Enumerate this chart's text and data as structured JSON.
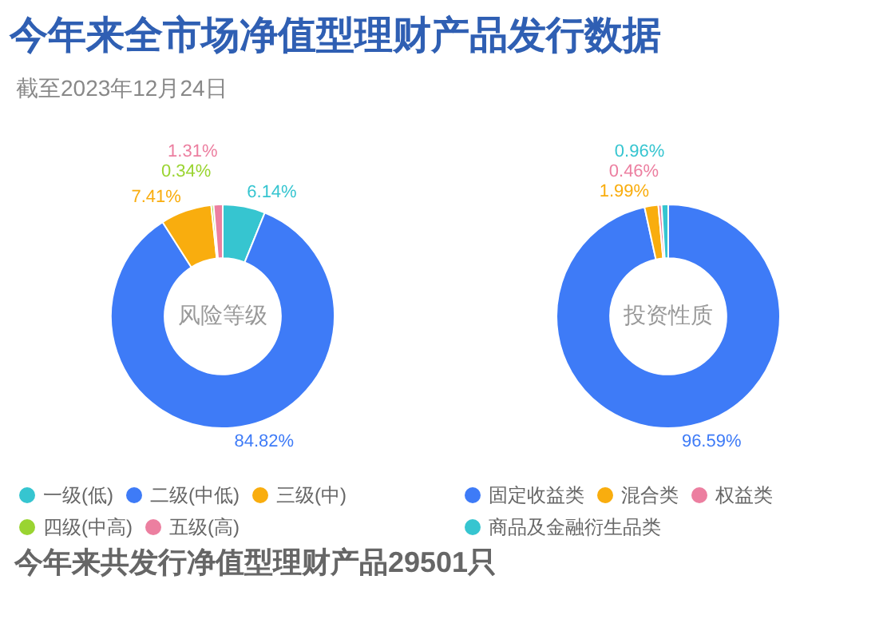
{
  "chart_data": [
    {
      "type": "donut",
      "title": "今年来全市场净值型理财产品发行数据",
      "subtitle": "截至2023年12月24日",
      "categories": [
        "一级(低)",
        "二级(中低)",
        "三级(中)",
        "四级(中高)",
        "五级(高)"
      ],
      "values": [
        6.14,
        84.82,
        7.41,
        0.34,
        1.31
      ],
      "colors": [
        "#36c5d0",
        "#3e7bf7",
        "#f9ad0e",
        "#9ad431",
        "#ec7fa0"
      ],
      "value_labels": [
        "6.14%",
        "84.82%",
        "7.41%",
        "0.34%",
        "1.31%"
      ],
      "legend": "bottom",
      "annotations": [
        "风险等级",
        "今年来共发行净值型理财产品29501只"
      ]
    },
    {
      "type": "donut",
      "categories": [
        "固定收益类",
        "混合类",
        "权益类",
        "商品及金融衍生品类"
      ],
      "values": [
        96.59,
        1.99,
        0.46,
        0.96
      ],
      "colors": [
        "#3e7bf7",
        "#f9ad0e",
        "#ec7fa0",
        "#36c5d0"
      ],
      "value_labels": [
        "96.59%",
        "1.99%",
        "0.46%",
        "0.96%"
      ],
      "legend": "bottom",
      "annotations": [
        "投资性质"
      ]
    }
  ]
}
